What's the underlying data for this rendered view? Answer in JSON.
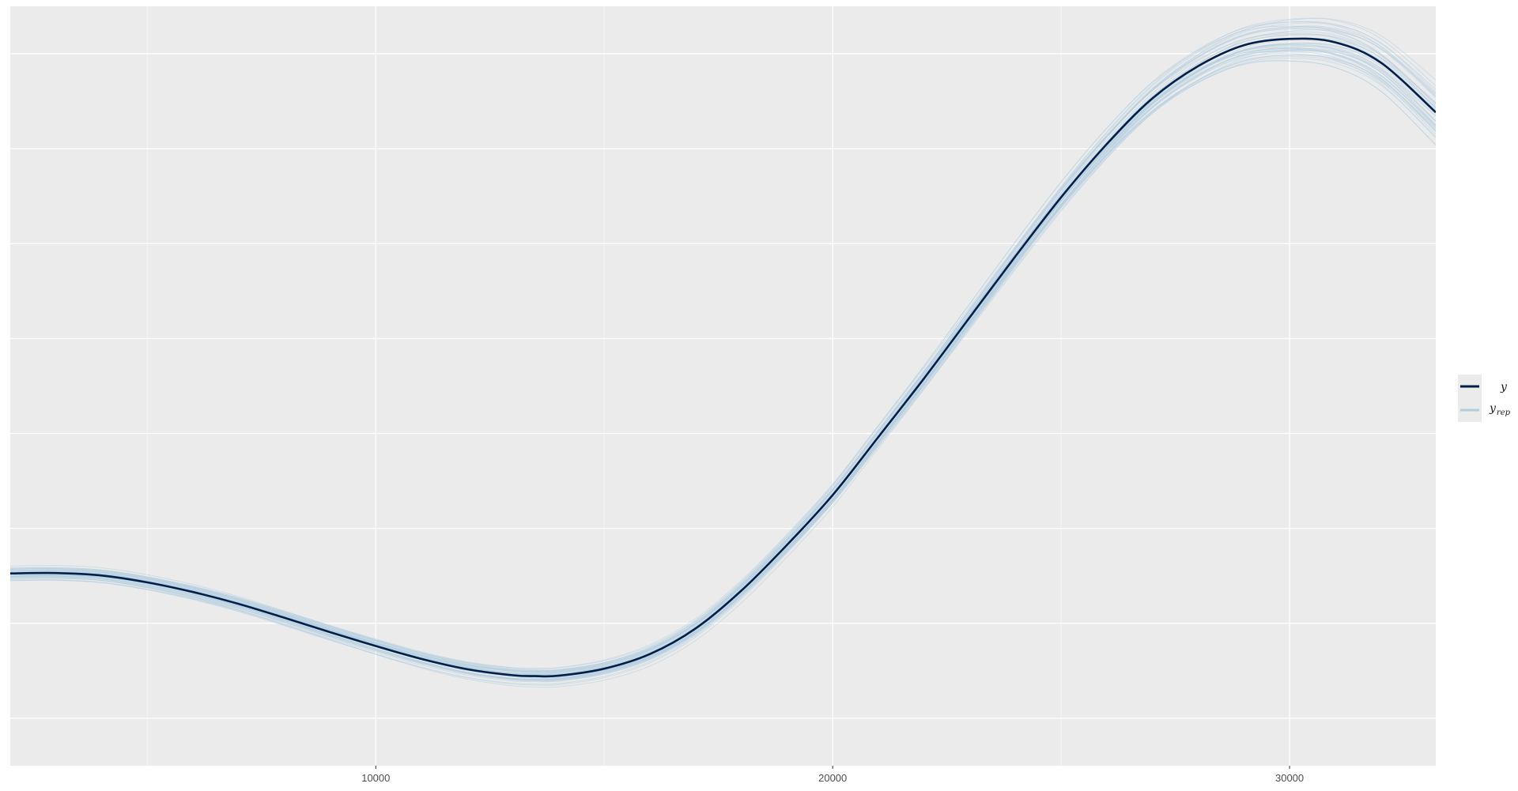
{
  "chart_data": {
    "type": "line",
    "title": "",
    "xlabel": "",
    "ylabel": "",
    "xlim": [
      2000,
      33200
    ],
    "x_ticks": [
      10000,
      20000,
      30000
    ],
    "x_tick_labels": [
      "10000",
      "20000",
      "30000"
    ],
    "x_minor_ticks": [
      5000,
      15000,
      25000
    ],
    "ylim": [
      0,
      1
    ],
    "y_gridlines": [
      0.0625,
      0.1875,
      0.3125,
      0.4375,
      0.5625,
      0.6875,
      0.8125,
      0.9375
    ],
    "y_tick_labels_shown": false,
    "grid": true,
    "legend": {
      "position": "right",
      "entries": [
        {
          "label": "y",
          "subscript": "",
          "color": "#011f4b"
        },
        {
          "label": "y",
          "subscript": "rep",
          "color": "#b3cde0"
        }
      ]
    },
    "series": [
      {
        "name": "y",
        "color": "#011f4b",
        "x": [
          2000,
          3000,
          4000,
          5000,
          6000,
          7000,
          8000,
          9000,
          10000,
          11000,
          12000,
          13000,
          13500,
          14000,
          15000,
          16000,
          17000,
          18000,
          19000,
          20000,
          21000,
          22000,
          23000,
          24000,
          25000,
          26000,
          27000,
          28000,
          29000,
          30000,
          31000,
          32000,
          33200
        ],
        "y": [
          0.2532,
          0.2537,
          0.2505,
          0.2414,
          0.2287,
          0.2131,
          0.1948,
          0.1759,
          0.1577,
          0.1406,
          0.1271,
          0.1191,
          0.118,
          0.1185,
          0.1278,
          0.147,
          0.1807,
          0.2305,
          0.2907,
          0.3564,
          0.4329,
          0.5101,
          0.5905,
          0.6708,
          0.7485,
          0.8186,
          0.8789,
          0.9213,
          0.9488,
          0.9571,
          0.9526,
          0.9258,
          0.8605
        ]
      }
    ],
    "replicates": {
      "name": "y_rep",
      "color": "#b3cde0",
      "count": 40
    },
    "colors": {
      "panel_background": "#ebebeb",
      "grid_major": "#ffffff",
      "grid_minor": "#f5f5f5",
      "y_line": "#011f4b",
      "y_rep_line": "#b3cde0"
    }
  }
}
